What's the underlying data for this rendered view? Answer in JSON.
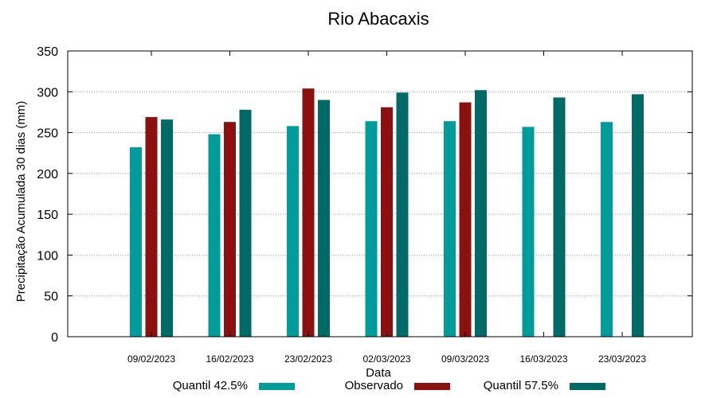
{
  "chart_data": {
    "type": "bar",
    "title": "Rio Abacaxis",
    "xlabel": "Data",
    "ylabel": "Precipitação Acumulada 30 dias (mm)",
    "ylim": [
      0,
      350
    ],
    "yticks": [
      0,
      50,
      100,
      150,
      200,
      250,
      300,
      350
    ],
    "grid": true,
    "legend_position": "bottom",
    "categories": [
      "09/02/2023",
      "16/02/2023",
      "23/02/2023",
      "02/03/2023",
      "09/03/2023",
      "16/03/2023",
      "23/03/2023"
    ],
    "series": [
      {
        "name": "Quantil 42.5%",
        "color": "#009c9c",
        "values": [
          232,
          248,
          258,
          264,
          264,
          257,
          263
        ]
      },
      {
        "name": "Observado",
        "color": "#8b1010",
        "values": [
          269,
          263,
          304,
          281,
          287,
          null,
          null
        ]
      },
      {
        "name": "Quantil 57.5%",
        "color": "#006a66",
        "values": [
          266,
          278,
          290,
          299,
          302,
          293,
          297
        ]
      }
    ]
  }
}
